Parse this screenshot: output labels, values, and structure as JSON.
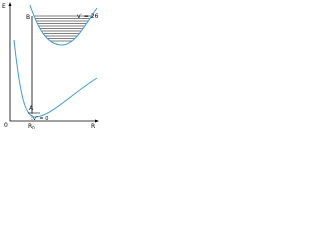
{
  "labels": {
    "energy_axis": "E",
    "distance_axis": "R",
    "origin": "0",
    "upper_point": "B",
    "lower_point": "A",
    "upper_level": "v′ = 26",
    "lower_level": "v″ = 0",
    "equilibrium": "R",
    "equilibrium_sub": "0"
  }
}
